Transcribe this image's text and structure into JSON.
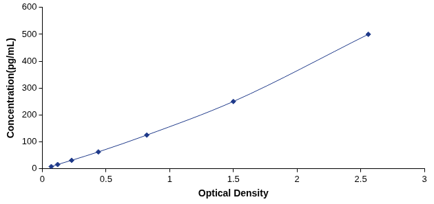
{
  "chart_data": {
    "type": "scatter",
    "x_label": "Optical Density",
    "y_label": "Concentration(pg/mL)",
    "x": [
      0.07,
      0.12,
      0.23,
      0.44,
      0.82,
      1.5,
      2.56
    ],
    "values": [
      7.8,
      15.6,
      31.2,
      62.5,
      125,
      250,
      500
    ],
    "color": "#1f3a8a",
    "marker": "diamond",
    "line_style": "solid",
    "xlim": [
      0,
      3
    ],
    "xticks": [
      0,
      0.5,
      1,
      1.5,
      2,
      2.5,
      3
    ],
    "ylim": [
      0,
      600
    ],
    "yticks": [
      0,
      100,
      200,
      300,
      400,
      500,
      600
    ],
    "grid": false
  }
}
